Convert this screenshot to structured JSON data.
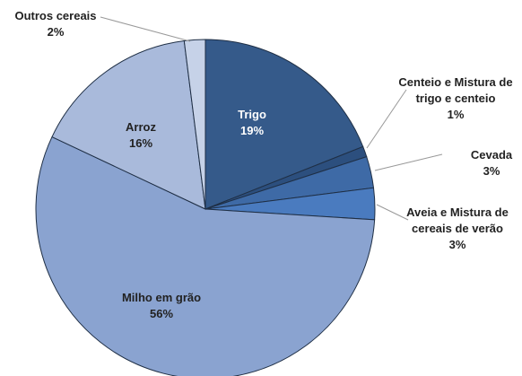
{
  "chart_data": {
    "type": "pie",
    "categories": [
      "Trigo",
      "Centeio e Mistura de trigo e centeio",
      "Cevada",
      "Aveia e Mistura de cereais de verão",
      "Milho em grão",
      "Arroz",
      "Outros cereais"
    ],
    "values": [
      19,
      1,
      3,
      3,
      56,
      16,
      2
    ],
    "value_labels": [
      "19%",
      "1%",
      "3%",
      "3%",
      "56%",
      "16%",
      "2%"
    ],
    "colors": [
      "#355a8a",
      "#2c4f7e",
      "#3e6aa6",
      "#4a7bbf",
      "#8aa3d0",
      "#a9badb",
      "#c6d2e8"
    ]
  }
}
